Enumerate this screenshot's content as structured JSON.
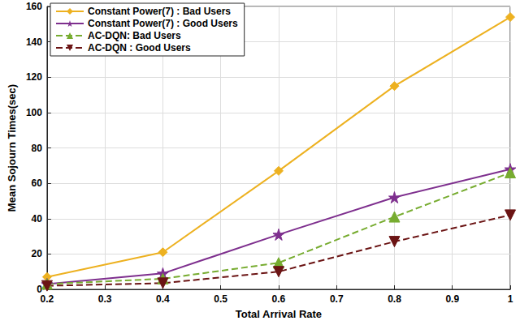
{
  "chart_data": {
    "type": "line",
    "x_label": "Total Arrival Rate",
    "y_label": "Mean Sojourn Times(sec)",
    "x": [
      0.2,
      0.4,
      0.6,
      0.8,
      1
    ],
    "xlim": [
      0.2,
      1
    ],
    "xticks": [
      0.2,
      0.3,
      0.4,
      0.5,
      0.6,
      0.7,
      0.8,
      0.9,
      1
    ],
    "ylim": [
      0,
      160
    ],
    "yticks": [
      0,
      20,
      40,
      60,
      80,
      100,
      120,
      140,
      160
    ],
    "grid": true,
    "legend": "upper left",
    "series": [
      {
        "name": "Constant Power(7) : Bad Users",
        "color": "#EDB120",
        "marker": "diamond",
        "line_style": "solid",
        "values": [
          7,
          21,
          67,
          115,
          154
        ]
      },
      {
        "name": "Constant Power(7) : Good Users",
        "color": "#7E2F8E",
        "marker": "star",
        "line_style": "solid",
        "values": [
          3,
          9,
          31,
          52,
          68
        ]
      },
      {
        "name": "AC-DQN: Bad Users",
        "color": "#77AC30",
        "marker": "triangle",
        "line_style": "dashed",
        "values": [
          3,
          6,
          15,
          41,
          66
        ]
      },
      {
        "name": "AC-DQN : Good Users",
        "color": "#6B1414",
        "marker": "triangle-down",
        "line_style": "dashed",
        "values": [
          2,
          3.5,
          10,
          27,
          42
        ]
      }
    ]
  }
}
